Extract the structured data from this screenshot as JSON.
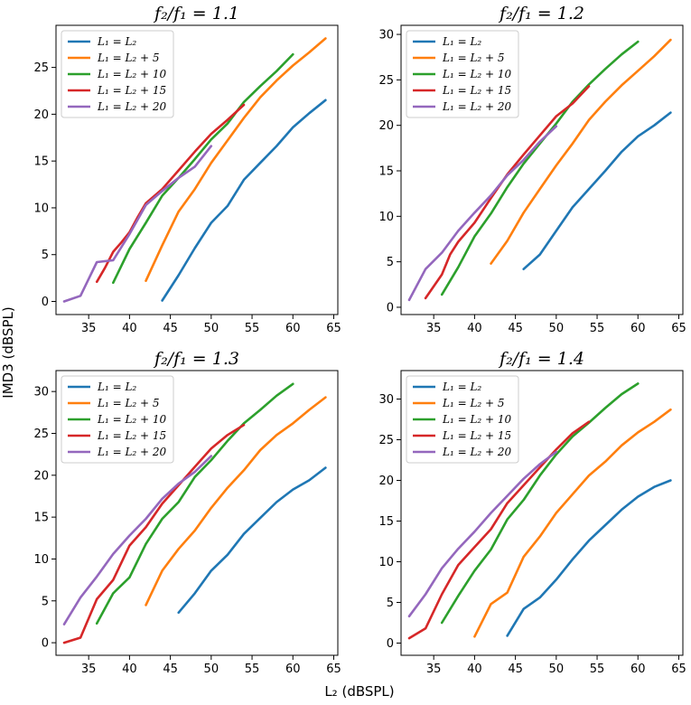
{
  "figure": {
    "ylabel": "IMD3 (dBSPL)",
    "xlabel": "L₂ (dBSPL)"
  },
  "colors": [
    "#1f77b4",
    "#ff7f0e",
    "#2ca02c",
    "#d62728",
    "#9467bd"
  ],
  "chart_data": [
    {
      "type": "line",
      "title": "f₂/f₁ = 1.1",
      "xlim": [
        31,
        65.5
      ],
      "ylim": [
        -1.4,
        29.5
      ],
      "xticks": [
        35,
        40,
        45,
        50,
        55,
        60,
        65
      ],
      "yticks": [
        0,
        5,
        10,
        15,
        20,
        25
      ],
      "legend": "top-left",
      "series": [
        {
          "name": "L₁ = L₂",
          "x": [
            44,
            46,
            48,
            50,
            52,
            54,
            56,
            58,
            60,
            62,
            64
          ],
          "values": [
            0.1,
            2.8,
            5.7,
            8.4,
            10.2,
            13.0,
            14.8,
            16.6,
            18.6,
            20.1,
            21.5
          ]
        },
        {
          "name": "L₁ = L₂ + 5",
          "x": [
            42,
            44,
            46,
            48,
            50,
            52,
            54,
            56,
            58,
            60,
            62,
            64
          ],
          "values": [
            2.2,
            6.0,
            9.6,
            12.0,
            14.8,
            17.2,
            19.6,
            21.8,
            23.6,
            25.2,
            26.6,
            28.1
          ]
        },
        {
          "name": "L₁ = L₂ + 10",
          "x": [
            38,
            40,
            42,
            44,
            46,
            48,
            50,
            52,
            54,
            56,
            58,
            60
          ],
          "values": [
            2.0,
            5.6,
            8.4,
            11.3,
            13.2,
            15.2,
            17.3,
            19.0,
            21.3,
            23.0,
            24.6,
            26.4
          ]
        },
        {
          "name": "L₁ = L₂ + 15",
          "x": [
            36,
            37,
            38,
            39,
            40,
            41,
            42,
            44,
            46,
            48,
            50,
            52,
            54
          ],
          "values": [
            2.1,
            3.6,
            5.3,
            6.3,
            7.4,
            9.0,
            10.5,
            12.0,
            14.0,
            16.0,
            17.9,
            19.4,
            21.0
          ]
        },
        {
          "name": "L₁ = L₂ + 20",
          "x": [
            32,
            34,
            35,
            36,
            38,
            40,
            42,
            44,
            46,
            48,
            50
          ],
          "values": [
            0.0,
            0.6,
            2.4,
            4.2,
            4.4,
            7.2,
            10.3,
            11.8,
            13.2,
            14.4,
            16.6
          ]
        }
      ]
    },
    {
      "type": "line",
      "title": "f₂/f₁ = 1.2",
      "xlim": [
        31,
        65.5
      ],
      "ylim": [
        -0.8,
        31
      ],
      "xticks": [
        35,
        40,
        45,
        50,
        55,
        60,
        65
      ],
      "yticks": [
        0,
        5,
        10,
        15,
        20,
        25,
        30
      ],
      "legend": "top-left",
      "series": [
        {
          "name": "L₁ = L₂",
          "x": [
            46,
            48,
            50,
            52,
            54,
            56,
            58,
            60,
            62,
            64
          ],
          "values": [
            4.2,
            5.8,
            8.4,
            11.0,
            13.0,
            15.0,
            17.1,
            18.8,
            20.0,
            21.4
          ]
        },
        {
          "name": "L₁ = L₂ + 5",
          "x": [
            42,
            44,
            46,
            48,
            50,
            52,
            54,
            56,
            58,
            60,
            62,
            64
          ],
          "values": [
            4.8,
            7.3,
            10.4,
            13.0,
            15.6,
            18.0,
            20.6,
            22.6,
            24.4,
            26.0,
            27.6,
            29.4
          ]
        },
        {
          "name": "L₁ = L₂ + 10",
          "x": [
            36,
            38,
            40,
            42,
            44,
            46,
            48,
            50,
            52,
            54,
            56,
            58,
            60
          ],
          "values": [
            1.4,
            4.4,
            7.8,
            10.3,
            13.2,
            15.8,
            18.0,
            20.2,
            22.6,
            24.5,
            26.2,
            27.8,
            29.2
          ]
        },
        {
          "name": "L₁ = L₂ + 15",
          "x": [
            34,
            36,
            37,
            38,
            40,
            42,
            44,
            46,
            48,
            50,
            52,
            54
          ],
          "values": [
            1.0,
            3.6,
            5.8,
            7.2,
            9.3,
            12.0,
            14.6,
            16.8,
            18.9,
            21.0,
            22.4,
            24.3
          ]
        },
        {
          "name": "L₁ = L₂ + 20",
          "x": [
            32,
            34,
            36,
            38,
            40,
            42,
            44,
            46,
            48,
            50
          ],
          "values": [
            0.8,
            4.2,
            6.0,
            8.4,
            10.4,
            12.3,
            14.5,
            16.2,
            18.2,
            19.9
          ]
        }
      ]
    },
    {
      "type": "line",
      "title": "f₂/f₁ = 1.3",
      "xlim": [
        31,
        65.5
      ],
      "ylim": [
        -1.5,
        32.5
      ],
      "xticks": [
        35,
        40,
        45,
        50,
        55,
        60,
        65
      ],
      "yticks": [
        0,
        5,
        10,
        15,
        20,
        25,
        30
      ],
      "legend": "top-left",
      "series": [
        {
          "name": "L₁ = L₂",
          "x": [
            46,
            48,
            50,
            52,
            54,
            56,
            58,
            60,
            62,
            64
          ],
          "values": [
            3.6,
            5.9,
            8.6,
            10.5,
            13.0,
            14.9,
            16.8,
            18.3,
            19.4,
            20.9
          ]
        },
        {
          "name": "L₁ = L₂ + 5",
          "x": [
            42,
            44,
            46,
            48,
            50,
            52,
            54,
            56,
            58,
            60,
            62,
            64
          ],
          "values": [
            4.5,
            8.6,
            11.2,
            13.4,
            16.1,
            18.5,
            20.6,
            23.0,
            24.8,
            26.2,
            27.8,
            29.3
          ]
        },
        {
          "name": "L₁ = L₂ + 10",
          "x": [
            36,
            38,
            40,
            42,
            44,
            46,
            48,
            50,
            52,
            54,
            56,
            58,
            60
          ],
          "values": [
            2.3,
            5.9,
            7.8,
            11.8,
            14.8,
            16.8,
            19.8,
            21.8,
            24.1,
            26.2,
            27.8,
            29.5,
            30.9
          ]
        },
        {
          "name": "L₁ = L₂ + 15",
          "x": [
            32,
            34,
            36,
            38,
            40,
            42,
            44,
            46,
            48,
            50,
            52,
            54
          ],
          "values": [
            0.0,
            0.6,
            5.2,
            7.5,
            11.6,
            13.8,
            16.6,
            18.8,
            21.0,
            23.2,
            24.8,
            26.0
          ]
        },
        {
          "name": "L₁ = L₂ + 20",
          "x": [
            32,
            34,
            36,
            38,
            40,
            42,
            44,
            46,
            48,
            50
          ],
          "values": [
            2.2,
            5.4,
            7.9,
            10.6,
            12.8,
            14.8,
            17.2,
            19.0,
            20.4,
            22.3
          ]
        }
      ]
    },
    {
      "type": "line",
      "title": "f₂/f₁ = 1.4",
      "xlim": [
        31,
        65.5
      ],
      "ylim": [
        -1.5,
        33.5
      ],
      "xticks": [
        35,
        40,
        45,
        50,
        55,
        60,
        65
      ],
      "yticks": [
        0,
        5,
        10,
        15,
        20,
        25,
        30
      ],
      "legend": "top-left",
      "series": [
        {
          "name": "L₁ = L₂",
          "x": [
            44,
            46,
            48,
            50,
            52,
            54,
            56,
            58,
            60,
            62,
            64
          ],
          "values": [
            0.9,
            4.2,
            5.6,
            7.8,
            10.3,
            12.6,
            14.5,
            16.4,
            18.0,
            19.2,
            20.0
          ]
        },
        {
          "name": "L₁ = L₂ + 5",
          "x": [
            40,
            42,
            44,
            46,
            48,
            50,
            52,
            54,
            56,
            58,
            60,
            62,
            64
          ],
          "values": [
            0.8,
            4.8,
            6.2,
            10.6,
            13.1,
            16.0,
            18.3,
            20.6,
            22.3,
            24.3,
            25.9,
            27.2,
            28.7
          ]
        },
        {
          "name": "L₁ = L₂ + 10",
          "x": [
            36,
            38,
            40,
            42,
            44,
            46,
            48,
            50,
            52,
            54,
            56,
            58,
            60
          ],
          "values": [
            2.5,
            5.8,
            8.9,
            11.5,
            15.2,
            17.6,
            20.6,
            23.2,
            25.4,
            27.1,
            28.9,
            30.6,
            31.9
          ]
        },
        {
          "name": "L₁ = L₂ + 15",
          "x": [
            32,
            34,
            36,
            38,
            40,
            42,
            44,
            46,
            48,
            50,
            52,
            54
          ],
          "values": [
            0.6,
            1.8,
            6.0,
            9.6,
            11.8,
            14.0,
            17.2,
            19.4,
            21.6,
            23.8,
            25.8,
            27.2
          ]
        },
        {
          "name": "L₁ = L₂ + 20",
          "x": [
            32,
            34,
            36,
            38,
            40,
            42,
            44,
            46,
            48,
            50
          ],
          "values": [
            3.3,
            6.0,
            9.2,
            11.6,
            13.7,
            16.0,
            18.1,
            20.2,
            22.0,
            23.5
          ]
        }
      ]
    }
  ]
}
